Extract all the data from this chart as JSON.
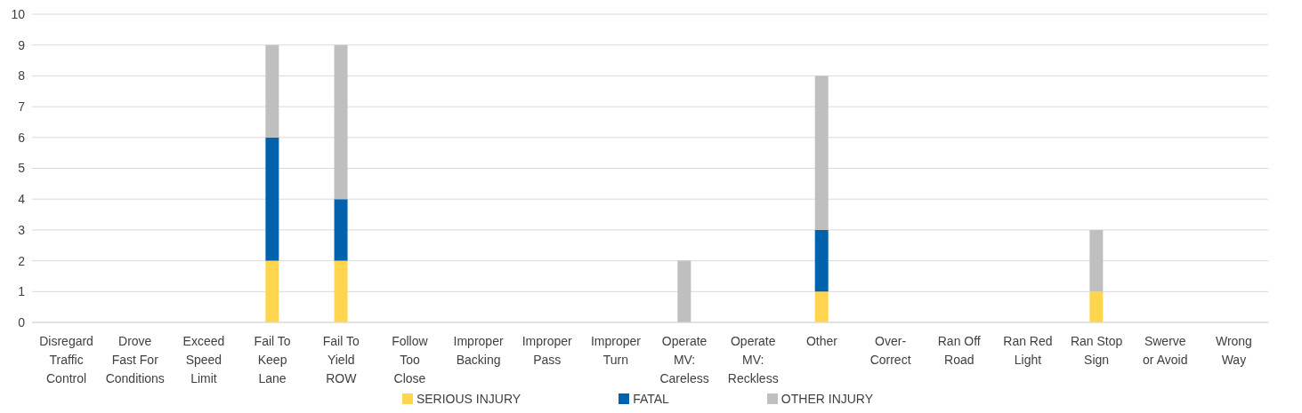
{
  "chart_data": {
    "type": "bar",
    "stacked": true,
    "categories": [
      "Disregard Traffic Control",
      "Drove Fast For Conditions",
      "Exceed Speed Limit",
      "Fail To Keep Lane",
      "Fail To Yield ROW",
      "Follow Too Close",
      "Improper Backing",
      "Improper Pass",
      "Improper Turn",
      "Operate MV: Careless",
      "Operate MV: Reckless",
      "Other",
      "Over-Correct",
      "Ran Off Road",
      "Ran Red Light",
      "Ran Stop Sign",
      "Swerve or Avoid",
      "Wrong Way"
    ],
    "series": [
      {
        "name": "SERIOUS INJURY",
        "color": "#ffd54f",
        "values": [
          0,
          0,
          0,
          2,
          2,
          0,
          0,
          0,
          0,
          0,
          0,
          1,
          0,
          0,
          0,
          1,
          0,
          0
        ]
      },
      {
        "name": "FATAL",
        "color": "#0061ac",
        "values": [
          0,
          0,
          0,
          4,
          2,
          0,
          0,
          0,
          0,
          0,
          0,
          2,
          0,
          0,
          0,
          0,
          0,
          0
        ]
      },
      {
        "name": "OTHER INJURY",
        "color": "#bfbfbf",
        "values": [
          0,
          0,
          0,
          3,
          5,
          0,
          0,
          0,
          0,
          2,
          0,
          5,
          0,
          0,
          0,
          2,
          0,
          0
        ]
      }
    ],
    "ylim": [
      0,
      10
    ],
    "yticks": [
      0,
      1,
      2,
      3,
      4,
      5,
      6,
      7,
      8,
      9,
      10
    ],
    "grid": "y",
    "legend": "bottom"
  }
}
